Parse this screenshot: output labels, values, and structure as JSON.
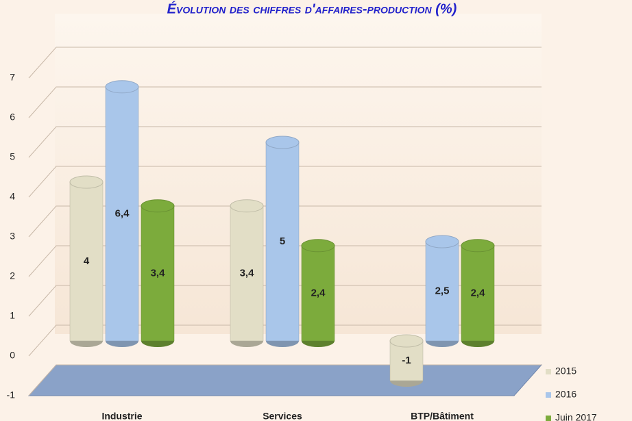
{
  "chart_data": {
    "type": "bar3d",
    "title": "Évolution des chiffres d'affaires-production (%)",
    "categories": [
      "Industrie",
      "Services",
      "BTP/Bâtiment"
    ],
    "series": [
      {
        "name": "2015",
        "color": "#e2dec6",
        "values": [
          4,
          3.4,
          -1
        ],
        "value_labels": [
          "4",
          "3,4",
          "-1"
        ]
      },
      {
        "name": "2016",
        "color": "#a9c6ea",
        "values": [
          6.4,
          5,
          2.5
        ],
        "value_labels": [
          "6,4",
          "5",
          "2,5"
        ]
      },
      {
        "name": "Juin 2017",
        "color": "#7cab3c",
        "values": [
          3.4,
          2.4,
          2.4
        ],
        "value_labels": [
          "3,4",
          "2,4",
          "2,4"
        ]
      }
    ],
    "ylim": [
      -1,
      7
    ],
    "yticks": [
      -1,
      0,
      1,
      2,
      3,
      4,
      5,
      6,
      7
    ],
    "grid": true,
    "legend": "right"
  }
}
